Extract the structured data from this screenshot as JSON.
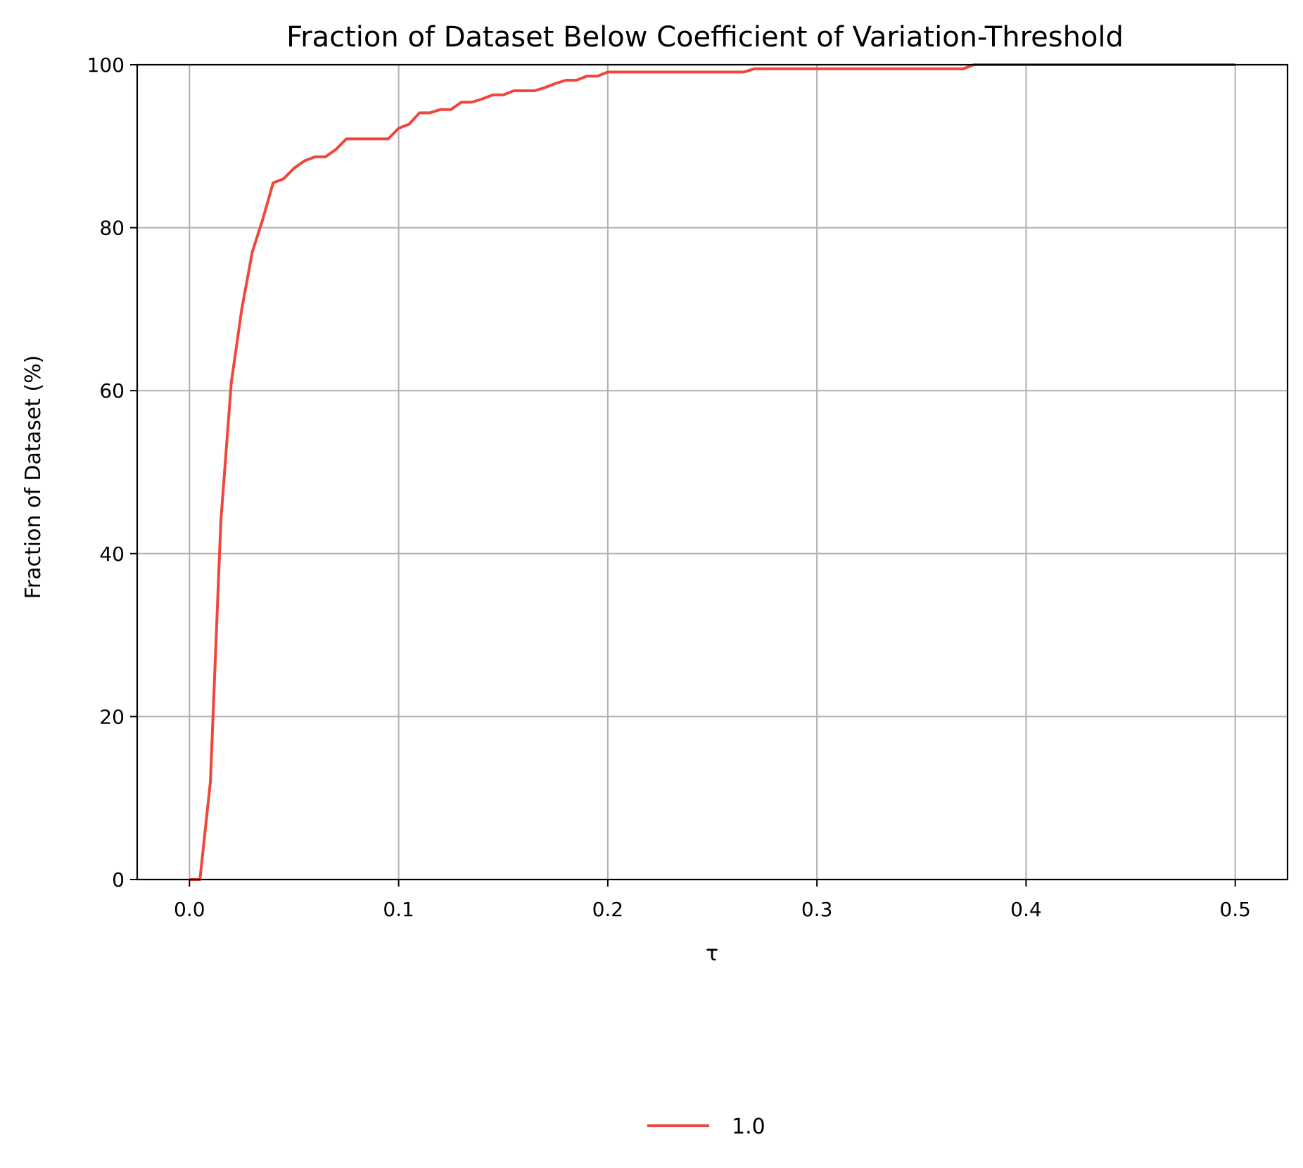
{
  "chart_data": {
    "type": "line",
    "title": "Fraction of Dataset Below Coefficient of Variation-Threshold",
    "xlabel": "τ",
    "ylabel": "Fraction of Dataset (%)",
    "xlim": [
      -0.025,
      0.525
    ],
    "ylim": [
      0,
      100
    ],
    "x_ticks": [
      0.0,
      0.1,
      0.2,
      0.3,
      0.4,
      0.5
    ],
    "x_tick_labels": [
      "0.0",
      "0.1",
      "0.2",
      "0.3",
      "0.4",
      "0.5"
    ],
    "y_ticks": [
      0,
      20,
      40,
      60,
      80,
      100
    ],
    "y_tick_labels": [
      "0",
      "20",
      "40",
      "60",
      "80",
      "100"
    ],
    "grid": true,
    "legend": {
      "placement": "bottom-center"
    },
    "series": [
      {
        "name": "1.0",
        "color": "#f0463b",
        "points": [
          [
            0.0,
            0
          ],
          [
            0.005,
            0
          ],
          [
            0.01,
            12
          ],
          [
            0.015,
            44
          ],
          [
            0.02,
            61
          ],
          [
            0.025,
            70
          ],
          [
            0.03,
            77
          ],
          [
            0.035,
            81
          ],
          [
            0.04,
            85.5
          ],
          [
            0.045,
            86
          ],
          [
            0.05,
            87.3
          ],
          [
            0.055,
            88.2
          ],
          [
            0.06,
            88.7
          ],
          [
            0.065,
            88.7
          ],
          [
            0.07,
            89.6
          ],
          [
            0.075,
            90.9
          ],
          [
            0.08,
            90.9
          ],
          [
            0.085,
            90.9
          ],
          [
            0.09,
            90.9
          ],
          [
            0.095,
            90.9
          ],
          [
            0.1,
            92.2
          ],
          [
            0.105,
            92.7
          ],
          [
            0.11,
            94.1
          ],
          [
            0.115,
            94.1
          ],
          [
            0.12,
            94.5
          ],
          [
            0.125,
            94.5
          ],
          [
            0.13,
            95.4
          ],
          [
            0.135,
            95.4
          ],
          [
            0.14,
            95.8
          ],
          [
            0.145,
            96.3
          ],
          [
            0.15,
            96.3
          ],
          [
            0.155,
            96.8
          ],
          [
            0.16,
            96.8
          ],
          [
            0.165,
            96.8
          ],
          [
            0.17,
            97.2
          ],
          [
            0.175,
            97.7
          ],
          [
            0.18,
            98.1
          ],
          [
            0.185,
            98.1
          ],
          [
            0.19,
            98.6
          ],
          [
            0.195,
            98.6
          ],
          [
            0.2,
            99.1
          ],
          [
            0.205,
            99.1
          ],
          [
            0.21,
            99.1
          ],
          [
            0.215,
            99.1
          ],
          [
            0.22,
            99.1
          ],
          [
            0.23,
            99.1
          ],
          [
            0.24,
            99.1
          ],
          [
            0.25,
            99.1
          ],
          [
            0.26,
            99.1
          ],
          [
            0.265,
            99.1
          ],
          [
            0.27,
            99.5
          ],
          [
            0.28,
            99.5
          ],
          [
            0.3,
            99.5
          ],
          [
            0.32,
            99.5
          ],
          [
            0.34,
            99.5
          ],
          [
            0.36,
            99.5
          ],
          [
            0.37,
            99.5
          ],
          [
            0.375,
            100
          ],
          [
            0.4,
            100
          ],
          [
            0.45,
            100
          ],
          [
            0.5,
            100
          ]
        ]
      }
    ]
  }
}
